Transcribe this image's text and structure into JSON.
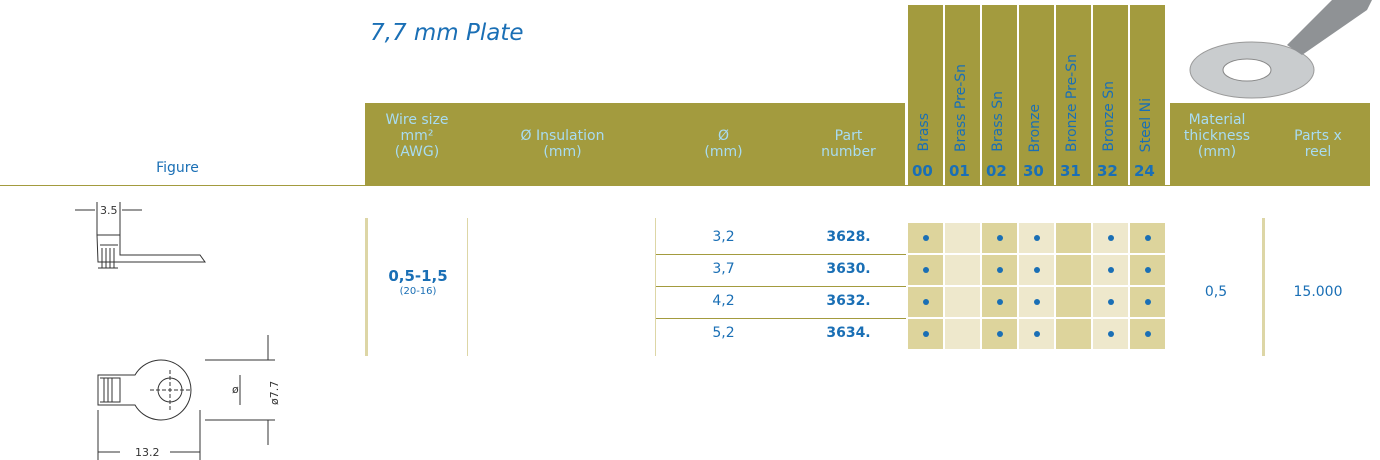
{
  "title": "7,7 mm Plate",
  "headers": {
    "figure": "Figure",
    "wire_size": [
      "Wire size",
      "mm²",
      "(AWG)"
    ],
    "insulation": [
      "Ø Insulation",
      "(mm)"
    ],
    "diameter": [
      "Ø",
      "(mm)"
    ],
    "part_number": [
      "Part",
      "number"
    ],
    "thickness": [
      "Material",
      "thickness",
      "(mm)"
    ],
    "parts_per_reel": [
      "Parts x",
      "reel"
    ]
  },
  "materials": [
    {
      "name": "Brass",
      "code": "00"
    },
    {
      "name": "Brass Pre-Sn",
      "code": "01"
    },
    {
      "name": "Brass Sn",
      "code": "02"
    },
    {
      "name": "Bronze",
      "code": "30"
    },
    {
      "name": "Bronze Pre-Sn",
      "code": "31"
    },
    {
      "name": "Bronze Sn",
      "code": "32"
    },
    {
      "name": "Steel Ni",
      "code": "24"
    }
  ],
  "group": {
    "wire_size": "0,5-1,5",
    "awg": "(20-16)",
    "thickness": "0,5",
    "parts_per_reel": "15.000"
  },
  "rows": [
    {
      "diameter": "3,2",
      "part_number": "3628.",
      "availability": [
        true,
        false,
        true,
        true,
        false,
        true,
        true
      ]
    },
    {
      "diameter": "3,7",
      "part_number": "3630.",
      "availability": [
        true,
        false,
        true,
        true,
        false,
        true,
        true
      ]
    },
    {
      "diameter": "4,2",
      "part_number": "3632.",
      "availability": [
        true,
        false,
        true,
        true,
        false,
        true,
        true
      ]
    },
    {
      "diameter": "5,2",
      "part_number": "3634.",
      "availability": [
        true,
        false,
        true,
        true,
        false,
        true,
        true
      ]
    }
  ],
  "figure": {
    "top_width": "3.5",
    "length": "13.2",
    "hole": "ø",
    "plate": "ø7.7"
  }
}
